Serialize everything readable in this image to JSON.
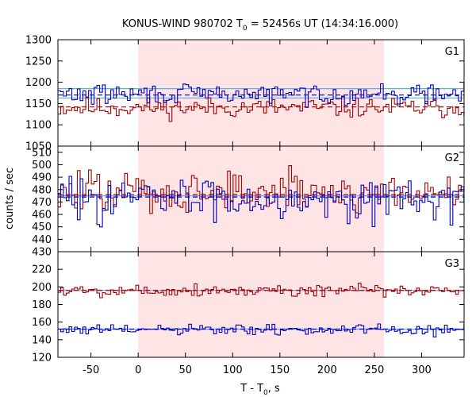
{
  "title": "KONUS-WIND 980702 T",
  "title_sub": "0",
  "title_rest": " = 52456s UT (14:34:16.000)",
  "xlabel_main": "T - T",
  "xlabel_sub": "0",
  "xlabel_rest": ", s",
  "ylabel": "counts / sec",
  "colors": {
    "red_series": "#a50000",
    "blue_series": "#0000c0",
    "fit_line": "#5fa8ff",
    "shade": "#ffe4e6",
    "frame": "#000000"
  },
  "chart_data": [
    {
      "type": "line",
      "label": "G1",
      "xlim": [
        -85,
        345
      ],
      "ylim": [
        1050,
        1300
      ],
      "yticks": [
        1050,
        1100,
        1150,
        1200,
        1250,
        1300
      ],
      "xticks": [
        -50,
        0,
        50,
        100,
        150,
        200,
        250,
        300
      ],
      "shaded_interval": [
        0,
        260
      ],
      "background_levels": [
        {
          "series": "red",
          "value": 1142
        },
        {
          "series": "blue",
          "value": 1170
        }
      ],
      "fit_lines": [
        1163,
        1185
      ],
      "series": [
        {
          "color": "red",
          "mean": 1140,
          "amp": 22,
          "seed": 11,
          "step": 2.944
        },
        {
          "color": "blue",
          "mean": 1172,
          "amp": 22,
          "seed": 29,
          "step": 2.944
        }
      ]
    },
    {
      "type": "line",
      "label": "G2",
      "xlim": [
        -85,
        345
      ],
      "ylim": [
        430,
        515
      ],
      "yticks": [
        430,
        440,
        450,
        460,
        470,
        480,
        490,
        500,
        510
      ],
      "xticks": [
        -50,
        0,
        50,
        100,
        150,
        200,
        250,
        300
      ],
      "shaded_interval": [
        0,
        260
      ],
      "background_levels": [
        {
          "series": "red",
          "value": 476
        },
        {
          "series": "blue",
          "value": 474
        }
      ],
      "fit_lines": [
        475
      ],
      "series": [
        {
          "color": "red",
          "mean": 478,
          "amp": 16,
          "seed": 47,
          "step": 2.944
        },
        {
          "color": "blue",
          "mean": 473,
          "amp": 16,
          "seed": 83,
          "step": 2.944
        }
      ]
    },
    {
      "type": "line",
      "label": "G3",
      "xlim": [
        -85,
        345
      ],
      "ylim": [
        120,
        240
      ],
      "yticks": [
        120,
        140,
        160,
        180,
        200,
        220
      ],
      "xticks": [
        -50,
        0,
        50,
        100,
        150,
        200,
        250,
        300
      ],
      "shaded_interval": [
        0,
        260
      ],
      "background_levels": [
        {
          "series": "red",
          "value": 196
        },
        {
          "series": "blue",
          "value": 152
        }
      ],
      "fit_lines": [
        196,
        152
      ],
      "series": [
        {
          "color": "red",
          "mean": 196,
          "amp": 7,
          "seed": 5,
          "step": 2.944
        },
        {
          "color": "blue",
          "mean": 151,
          "amp": 6,
          "seed": 61,
          "step": 2.944
        }
      ]
    }
  ]
}
